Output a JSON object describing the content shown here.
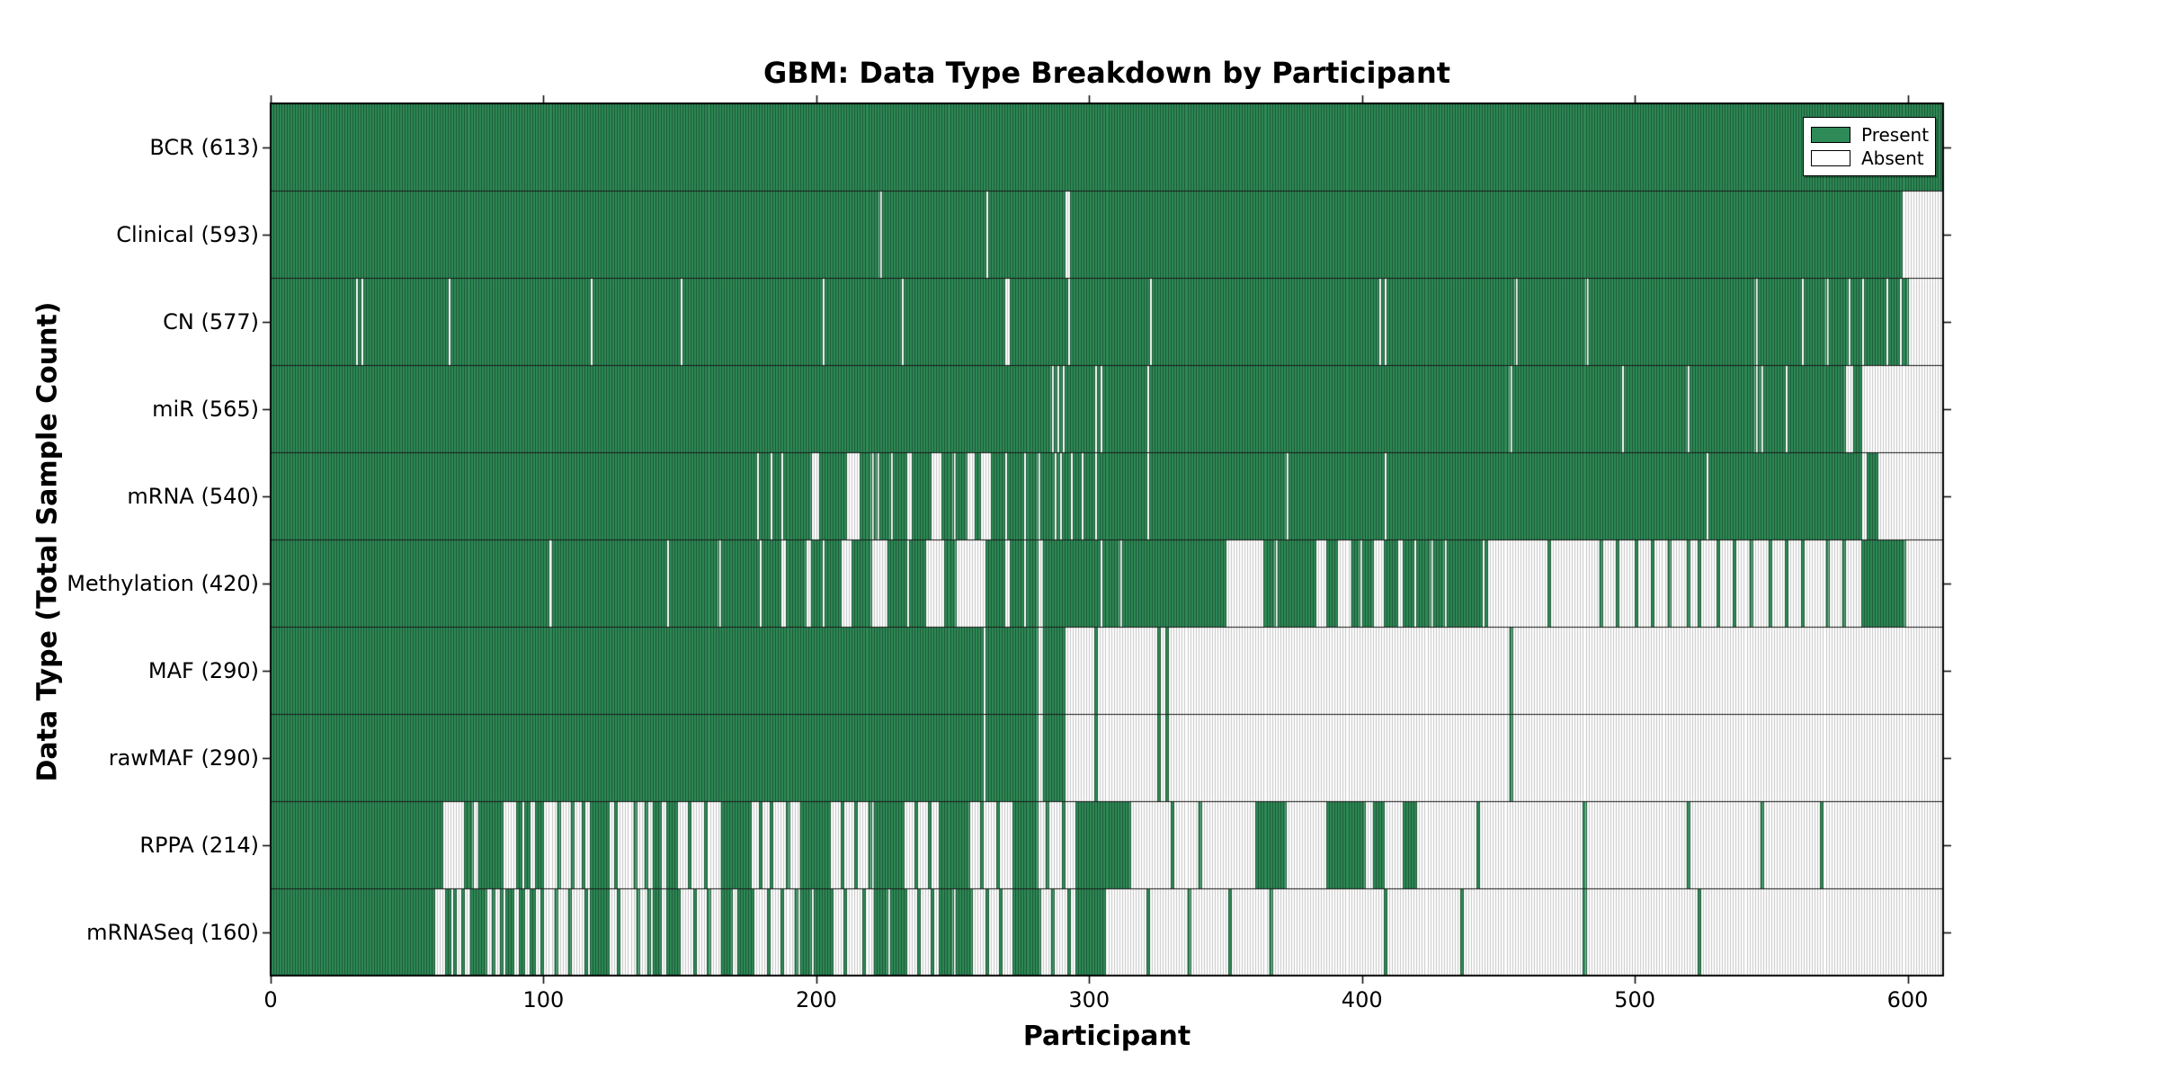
{
  "title": "GBM: Data Type Breakdown by Participant",
  "x_axis": {
    "label": "Participant",
    "tick_labels": [
      "0",
      "100",
      "200",
      "300",
      "400",
      "500",
      "600"
    ],
    "ticks": [
      0,
      100,
      200,
      300,
      400,
      500,
      600
    ]
  },
  "y_axis": {
    "label": "Data Type (Total Sample Count)"
  },
  "legend": {
    "present_label": "Present",
    "absent_label": "Absent"
  },
  "colors": {
    "present": "#2e8b57",
    "present_edge": "#1b5435",
    "absent": "#ffffff",
    "absent_edge": "#c3c3c3",
    "border": "#000000",
    "row_divider": "#1a1a1a"
  },
  "chart_data": {
    "type": "heatmap",
    "title": "GBM: Data Type Breakdown by Participant",
    "xlabel": "Participant",
    "ylabel": "Data Type (Total Sample Count)",
    "x_range": [
      0,
      613
    ],
    "legend_entries": [
      "Present",
      "Absent"
    ],
    "cell_states": {
      "present": 1,
      "absent": 0
    },
    "rows": [
      {
        "label": "BCR (613)",
        "data_type": "BCR",
        "total_samples": 613,
        "present_runs": [
          [
            0,
            613
          ]
        ]
      },
      {
        "label": "Clinical (593)",
        "data_type": "Clinical",
        "total_samples": 593,
        "present_runs": [
          [
            0,
            223
          ],
          [
            224,
            262
          ],
          [
            263,
            291
          ],
          [
            293,
            598
          ]
        ]
      },
      {
        "label": "CN (577)",
        "data_type": "CN",
        "total_samples": 577,
        "present_runs": [
          [
            0,
            31
          ],
          [
            32,
            33
          ],
          [
            34,
            65
          ],
          [
            66,
            117
          ],
          [
            118,
            150
          ],
          [
            151,
            202
          ],
          [
            203,
            231
          ],
          [
            232,
            269
          ],
          [
            271,
            292
          ],
          [
            293,
            322
          ],
          [
            323,
            406
          ],
          [
            407,
            408
          ],
          [
            409,
            456
          ],
          [
            457,
            482
          ],
          [
            483,
            544
          ],
          [
            545,
            561
          ],
          [
            562,
            570
          ],
          [
            571,
            578
          ],
          [
            579,
            583
          ],
          [
            584,
            592
          ],
          [
            593,
            597
          ],
          [
            598,
            600
          ]
        ]
      },
      {
        "label": "miR (565)",
        "data_type": "miR",
        "total_samples": 565,
        "present_runs": [
          [
            0,
            286
          ],
          [
            287,
            288
          ],
          [
            289,
            290
          ],
          [
            291,
            302
          ],
          [
            303,
            304
          ],
          [
            305,
            321
          ],
          [
            322,
            454
          ],
          [
            455,
            495
          ],
          [
            496,
            519
          ],
          [
            520,
            544
          ],
          [
            545,
            546
          ],
          [
            547,
            555
          ],
          [
            556,
            577
          ],
          [
            580,
            583
          ]
        ]
      },
      {
        "label": "mRNA (540)",
        "data_type": "mRNA",
        "total_samples": 540,
        "present_runs": [
          [
            0,
            178
          ],
          [
            179,
            183
          ],
          [
            184,
            187
          ],
          [
            188,
            198
          ],
          [
            201,
            211
          ],
          [
            216,
            220
          ],
          [
            221,
            222
          ],
          [
            223,
            227
          ],
          [
            228,
            233
          ],
          [
            235,
            242
          ],
          [
            246,
            250
          ],
          [
            251,
            255
          ],
          [
            258,
            260
          ],
          [
            264,
            269
          ],
          [
            270,
            276
          ],
          [
            277,
            281
          ],
          [
            282,
            287
          ],
          [
            288,
            289
          ],
          [
            290,
            293
          ],
          [
            294,
            297
          ],
          [
            298,
            302
          ],
          [
            303,
            321
          ],
          [
            322,
            372
          ],
          [
            373,
            408
          ],
          [
            409,
            526
          ],
          [
            527,
            583
          ],
          [
            585,
            589
          ]
        ]
      },
      {
        "label": "Methylation (420)",
        "data_type": "Methylation",
        "total_samples": 420,
        "present_runs": [
          [
            0,
            102
          ],
          [
            103,
            145
          ],
          [
            146,
            164
          ],
          [
            165,
            179
          ],
          [
            180,
            187
          ],
          [
            189,
            196
          ],
          [
            198,
            202
          ],
          [
            203,
            209
          ],
          [
            213,
            220
          ],
          [
            226,
            233
          ],
          [
            234,
            240
          ],
          [
            247,
            251
          ],
          [
            262,
            269
          ],
          [
            271,
            276
          ],
          [
            277,
            281
          ],
          [
            283,
            304
          ],
          [
            305,
            311
          ],
          [
            312,
            350
          ],
          [
            364,
            368
          ],
          [
            369,
            383
          ],
          [
            387,
            391
          ],
          [
            396,
            399
          ],
          [
            400,
            404
          ],
          [
            408,
            413
          ],
          [
            415,
            419
          ],
          [
            420,
            425
          ],
          [
            426,
            430
          ],
          [
            431,
            444
          ],
          [
            445,
            446
          ],
          [
            468,
            469
          ],
          [
            487,
            488
          ],
          [
            493,
            494
          ],
          [
            500,
            501
          ],
          [
            506,
            507
          ],
          [
            512,
            513
          ],
          [
            519,
            520
          ],
          [
            523,
            524
          ],
          [
            530,
            531
          ],
          [
            536,
            537
          ],
          [
            542,
            543
          ],
          [
            549,
            550
          ],
          [
            555,
            556
          ],
          [
            561,
            562
          ],
          [
            570,
            571
          ],
          [
            576,
            577
          ],
          [
            583,
            599
          ]
        ]
      },
      {
        "label": "MAF (290)",
        "data_type": "MAF",
        "total_samples": 290,
        "present_runs": [
          [
            0,
            261
          ],
          [
            262,
            281
          ],
          [
            283,
            291
          ],
          [
            302,
            303
          ],
          [
            325,
            326
          ],
          [
            328,
            329
          ],
          [
            454,
            455
          ]
        ]
      },
      {
        "label": "rawMAF (290)",
        "data_type": "rawMAF",
        "total_samples": 290,
        "present_runs": [
          [
            0,
            261
          ],
          [
            262,
            281
          ],
          [
            283,
            291
          ],
          [
            302,
            303
          ],
          [
            325,
            326
          ],
          [
            328,
            329
          ],
          [
            454,
            455
          ]
        ]
      },
      {
        "label": "RPPA (214)",
        "data_type": "RPPA",
        "total_samples": 214,
        "present_runs": [
          [
            0,
            63
          ],
          [
            71,
            74
          ],
          [
            76,
            85
          ],
          [
            90,
            92
          ],
          [
            93,
            95
          ],
          [
            97,
            100
          ],
          [
            105,
            106
          ],
          [
            110,
            111
          ],
          [
            114,
            115
          ],
          [
            117,
            124
          ],
          [
            126,
            127
          ],
          [
            133,
            134
          ],
          [
            137,
            138
          ],
          [
            140,
            143
          ],
          [
            145,
            149
          ],
          [
            153,
            154
          ],
          [
            159,
            160
          ],
          [
            165,
            176
          ],
          [
            179,
            180
          ],
          [
            183,
            184
          ],
          [
            189,
            190
          ],
          [
            194,
            205
          ],
          [
            209,
            210
          ],
          [
            214,
            215
          ],
          [
            219,
            220
          ],
          [
            221,
            232
          ],
          [
            236,
            237
          ],
          [
            241,
            242
          ],
          [
            245,
            256
          ],
          [
            260,
            261
          ],
          [
            266,
            267
          ],
          [
            272,
            281
          ],
          [
            284,
            285
          ],
          [
            290,
            291
          ],
          [
            295,
            315
          ],
          [
            330,
            331
          ],
          [
            340,
            341
          ],
          [
            361,
            372
          ],
          [
            387,
            401
          ],
          [
            404,
            408
          ],
          [
            415,
            420
          ],
          [
            442,
            443
          ],
          [
            481,
            482
          ],
          [
            519,
            520
          ],
          [
            546,
            547
          ],
          [
            568,
            569
          ]
        ]
      },
      {
        "label": "mRNASeq (160)",
        "data_type": "mRNASeq",
        "total_samples": 160,
        "present_runs": [
          [
            0,
            60
          ],
          [
            64,
            66
          ],
          [
            67,
            68
          ],
          [
            70,
            71
          ],
          [
            73,
            79
          ],
          [
            81,
            82
          ],
          [
            84,
            85
          ],
          [
            86,
            89
          ],
          [
            91,
            93
          ],
          [
            95,
            97
          ],
          [
            99,
            100
          ],
          [
            104,
            105
          ],
          [
            109,
            110
          ],
          [
            115,
            116
          ],
          [
            117,
            124
          ],
          [
            127,
            128
          ],
          [
            134,
            135
          ],
          [
            138,
            139
          ],
          [
            140,
            143
          ],
          [
            145,
            150
          ],
          [
            155,
            156
          ],
          [
            160,
            161
          ],
          [
            165,
            169
          ],
          [
            171,
            177
          ],
          [
            182,
            183
          ],
          [
            187,
            188
          ],
          [
            192,
            193
          ],
          [
            194,
            198
          ],
          [
            199,
            206
          ],
          [
            210,
            211
          ],
          [
            217,
            218
          ],
          [
            221,
            226
          ],
          [
            227,
            233
          ],
          [
            237,
            238
          ],
          [
            242,
            243
          ],
          [
            245,
            250
          ],
          [
            251,
            257
          ],
          [
            262,
            263
          ],
          [
            267,
            268
          ],
          [
            272,
            282
          ],
          [
            286,
            287
          ],
          [
            292,
            293
          ],
          [
            295,
            306
          ],
          [
            321,
            322
          ],
          [
            336,
            337
          ],
          [
            351,
            352
          ],
          [
            366,
            367
          ],
          [
            408,
            409
          ],
          [
            436,
            437
          ],
          [
            481,
            482
          ],
          [
            523,
            524
          ]
        ]
      }
    ]
  }
}
